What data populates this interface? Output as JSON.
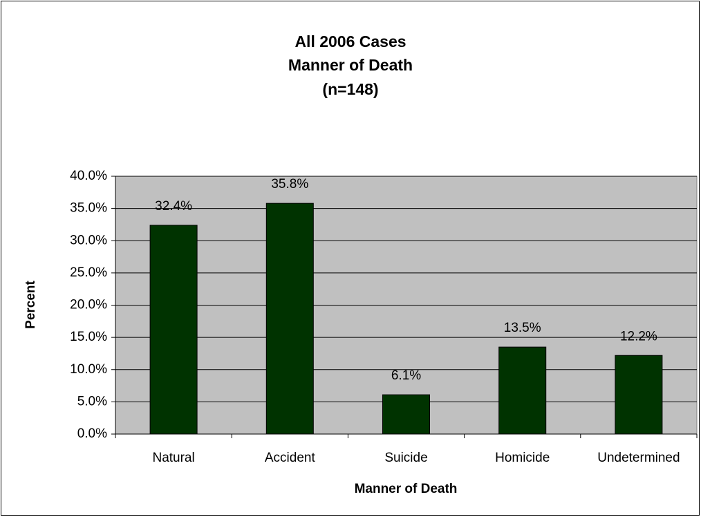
{
  "chart_data": {
    "type": "bar",
    "title": [
      "All 2006 Cases",
      "Manner of Death",
      "(n=148)"
    ],
    "x_label": "Manner of Death",
    "y_label": "Percent",
    "categories": [
      "Natural",
      "Accident",
      "Suicide",
      "Homicide",
      "Undetermined"
    ],
    "values": [
      32.4,
      35.8,
      6.1,
      13.5,
      12.2
    ],
    "value_labels": [
      "32.4%",
      "35.8%",
      "6.1%",
      "13.5%",
      "12.2%"
    ],
    "color": "#003300",
    "ylim": [
      0,
      40
    ],
    "yticks": [
      {
        "value": 0,
        "label": "0.0%"
      },
      {
        "value": 5,
        "label": "5.0%"
      },
      {
        "value": 10,
        "label": "10.0%"
      },
      {
        "value": 15,
        "label": "15.0%"
      },
      {
        "value": 20,
        "label": "20.0%"
      },
      {
        "value": 25,
        "label": "25.0%"
      },
      {
        "value": 30,
        "label": "30.0%"
      },
      {
        "value": 35,
        "label": "35.0%"
      },
      {
        "value": 40,
        "label": "40.0%"
      }
    ],
    "grid": true
  }
}
